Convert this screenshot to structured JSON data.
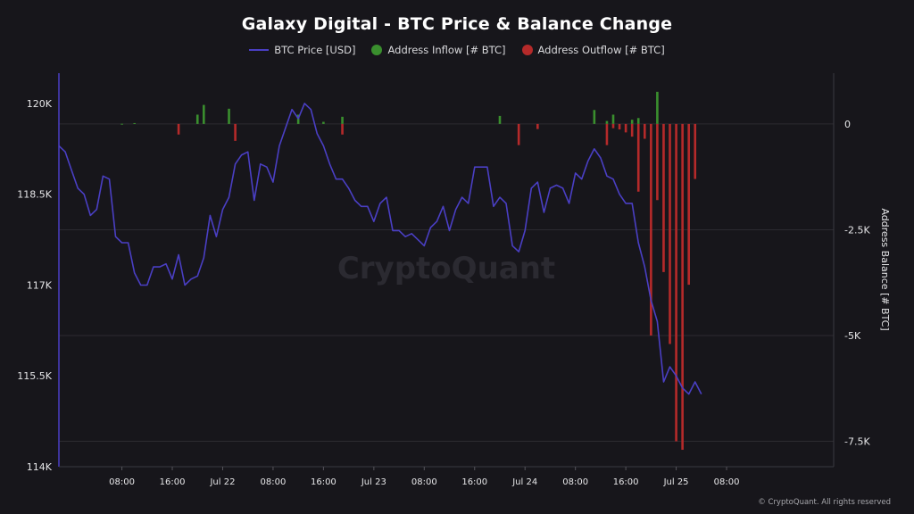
{
  "colors": {
    "background": "#17161b",
    "price": "#4a3fc4",
    "inflow": "#3a8f2e",
    "outflow": "#b52a2a",
    "grid": "#2c2b31",
    "axis_text": "#e6e6e8"
  },
  "watermark": "CryptoQuant",
  "copyright": "© CryptoQuant. All rights reserved",
  "chart_data": {
    "type": "line",
    "title": "Galaxy Digital - BTC Price & Balance Change",
    "legend": {
      "position": "top-center",
      "entries": [
        "BTC Price [USD]",
        "Address Inflow [# BTC]",
        "Address Outflow [# BTC]"
      ]
    },
    "x_ticks": [
      "08:00",
      "16:00",
      "Jul 22",
      "08:00",
      "16:00",
      "Jul 23",
      "08:00",
      "16:00",
      "Jul 24",
      "08:00",
      "16:00",
      "Jul 25",
      "08:00"
    ],
    "x_range_hours": [
      -10,
      113
    ],
    "y_left": {
      "label": "",
      "range": [
        114000,
        120500
      ],
      "ticks": [
        114000,
        115500,
        117000,
        118500,
        120000
      ],
      "tick_labels": [
        "114K",
        "115.5K",
        "117K",
        "118.5K",
        "120K"
      ]
    },
    "y_right": {
      "label": "Address Balance [# BTC]",
      "range": [
        -8100,
        1200
      ],
      "ticks": [
        0,
        -2500,
        -5000,
        -7500
      ],
      "tick_labels": [
        "0",
        "-2.5K",
        "-5K",
        "-7.5K"
      ]
    },
    "grid": true,
    "series": [
      {
        "name": "BTC Price [USD]",
        "type": "line",
        "points": [
          [
            -10,
            119300
          ],
          [
            -9,
            119200
          ],
          [
            -8,
            118900
          ],
          [
            -7,
            118600
          ],
          [
            -6,
            118500
          ],
          [
            -5,
            118150
          ],
          [
            -4,
            118250
          ],
          [
            -3,
            118800
          ],
          [
            -2,
            118750
          ],
          [
            -1,
            117800
          ],
          [
            0,
            117700
          ],
          [
            1,
            117700
          ],
          [
            2,
            117200
          ],
          [
            3,
            117000
          ],
          [
            4,
            117000
          ],
          [
            5,
            117300
          ],
          [
            6,
            117300
          ],
          [
            7,
            117350
          ],
          [
            8,
            117100
          ],
          [
            9,
            117500
          ],
          [
            10,
            117000
          ],
          [
            11,
            117100
          ],
          [
            12,
            117150
          ],
          [
            13,
            117450
          ],
          [
            14,
            118150
          ],
          [
            15,
            117800
          ],
          [
            16,
            118250
          ],
          [
            17,
            118450
          ],
          [
            18,
            119000
          ],
          [
            19,
            119150
          ],
          [
            20,
            119200
          ],
          [
            21,
            118400
          ],
          [
            22,
            119000
          ],
          [
            23,
            118950
          ],
          [
            24,
            118700
          ],
          [
            25,
            119300
          ],
          [
            26,
            119600
          ],
          [
            27,
            119900
          ],
          [
            28,
            119750
          ],
          [
            29,
            120000
          ],
          [
            30,
            119900
          ],
          [
            31,
            119500
          ],
          [
            32,
            119300
          ],
          [
            33,
            119000
          ],
          [
            34,
            118750
          ],
          [
            35,
            118750
          ],
          [
            36,
            118600
          ],
          [
            37,
            118400
          ],
          [
            38,
            118300
          ],
          [
            39,
            118300
          ],
          [
            40,
            118050
          ],
          [
            41,
            118350
          ],
          [
            42,
            118450
          ],
          [
            43,
            117900
          ],
          [
            44,
            117900
          ],
          [
            45,
            117800
          ],
          [
            46,
            117850
          ],
          [
            47,
            117750
          ],
          [
            48,
            117650
          ],
          [
            49,
            117950
          ],
          [
            50,
            118050
          ],
          [
            51,
            118300
          ],
          [
            52,
            117900
          ],
          [
            53,
            118250
          ],
          [
            54,
            118450
          ],
          [
            55,
            118350
          ],
          [
            56,
            118950
          ],
          [
            57,
            118950
          ],
          [
            58,
            118950
          ],
          [
            59,
            118300
          ],
          [
            60,
            118450
          ],
          [
            61,
            118350
          ],
          [
            62,
            117650
          ],
          [
            63,
            117550
          ],
          [
            64,
            117900
          ],
          [
            65,
            118600
          ],
          [
            66,
            118700
          ],
          [
            67,
            118200
          ],
          [
            68,
            118600
          ],
          [
            69,
            118650
          ],
          [
            70,
            118600
          ],
          [
            71,
            118350
          ],
          [
            72,
            118850
          ],
          [
            73,
            118750
          ],
          [
            74,
            119050
          ],
          [
            75,
            119250
          ],
          [
            76,
            119100
          ],
          [
            77,
            118800
          ],
          [
            78,
            118750
          ],
          [
            79,
            118500
          ],
          [
            80,
            118350
          ],
          [
            81,
            118350
          ],
          [
            82,
            117700
          ],
          [
            83,
            117300
          ],
          [
            84,
            116750
          ],
          [
            85,
            116400
          ],
          [
            86,
            115400
          ],
          [
            87,
            115650
          ],
          [
            88,
            115500
          ],
          [
            89,
            115300
          ],
          [
            90,
            115200
          ],
          [
            91,
            115400
          ],
          [
            92,
            115200
          ]
        ]
      },
      {
        "name": "Address Inflow [# BTC]",
        "type": "bar",
        "points": [
          [
            0,
            5
          ],
          [
            2,
            20
          ],
          [
            12,
            220
          ],
          [
            13,
            450
          ],
          [
            17,
            360
          ],
          [
            28,
            220
          ],
          [
            32,
            50
          ],
          [
            35,
            170
          ],
          [
            60,
            190
          ],
          [
            75,
            330
          ],
          [
            77,
            70
          ],
          [
            78,
            220
          ],
          [
            81,
            100
          ],
          [
            82,
            140
          ],
          [
            85,
            760
          ]
        ]
      },
      {
        "name": "Address Outflow [# BTC]",
        "type": "bar",
        "points": [
          [
            9,
            -250
          ],
          [
            18,
            -400
          ],
          [
            35,
            -250
          ],
          [
            63,
            -500
          ],
          [
            66,
            -120
          ],
          [
            77,
            -500
          ],
          [
            78,
            -100
          ],
          [
            79,
            -130
          ],
          [
            80,
            -200
          ],
          [
            81,
            -300
          ],
          [
            82,
            -1600
          ],
          [
            83,
            -350
          ],
          [
            84,
            -5000
          ],
          [
            85,
            -1800
          ],
          [
            86,
            -3500
          ],
          [
            87,
            -5200
          ],
          [
            88,
            -7500
          ],
          [
            89,
            -7700
          ],
          [
            90,
            -3800
          ],
          [
            91,
            -1300
          ]
        ]
      }
    ]
  }
}
